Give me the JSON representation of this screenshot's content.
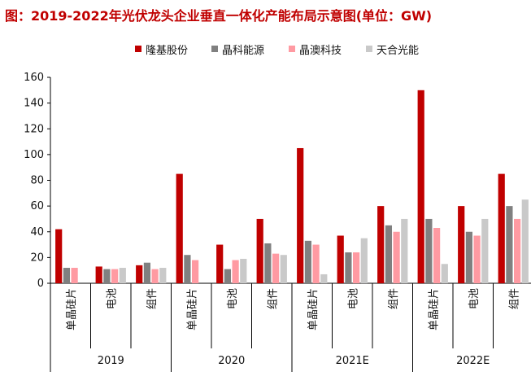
{
  "title": "图：2019-2022年光伏龙头企业垂直一体化产能布局示意图(单位：GW)",
  "chart_data": {
    "type": "bar",
    "ylim": [
      0,
      160
    ],
    "yticks": [
      0,
      20,
      40,
      60,
      80,
      100,
      120,
      140,
      160
    ],
    "legend_position": "top",
    "grid": false,
    "groups": [
      {
        "year": "2019",
        "categories": [
          "单晶硅片",
          "电池",
          "组件"
        ]
      },
      {
        "year": "2020",
        "categories": [
          "单晶硅片",
          "电池",
          "组件"
        ]
      },
      {
        "year": "2021E",
        "categories": [
          "单晶硅片",
          "电池",
          "组件"
        ]
      },
      {
        "year": "2022E",
        "categories": [
          "单晶硅片",
          "电池",
          "组件"
        ]
      }
    ],
    "series": [
      {
        "name": "隆基股份",
        "color": "#c00000",
        "values": [
          42,
          13,
          14,
          85,
          30,
          50,
          105,
          37,
          60,
          150,
          60,
          85
        ]
      },
      {
        "name": "晶科能源",
        "color": "#808080",
        "values": [
          12,
          11,
          16,
          22,
          11,
          31,
          33,
          24,
          45,
          50,
          40,
          60
        ]
      },
      {
        "name": "晶澳科技",
        "color": "#ff9aa2",
        "values": [
          12,
          11,
          11,
          18,
          18,
          23,
          30,
          24,
          40,
          43,
          37,
          50
        ]
      },
      {
        "name": "天合光能",
        "color": "#c9c9c9",
        "values": [
          0,
          12,
          12,
          0,
          19,
          22,
          7,
          35,
          50,
          15,
          50,
          65
        ]
      }
    ]
  }
}
